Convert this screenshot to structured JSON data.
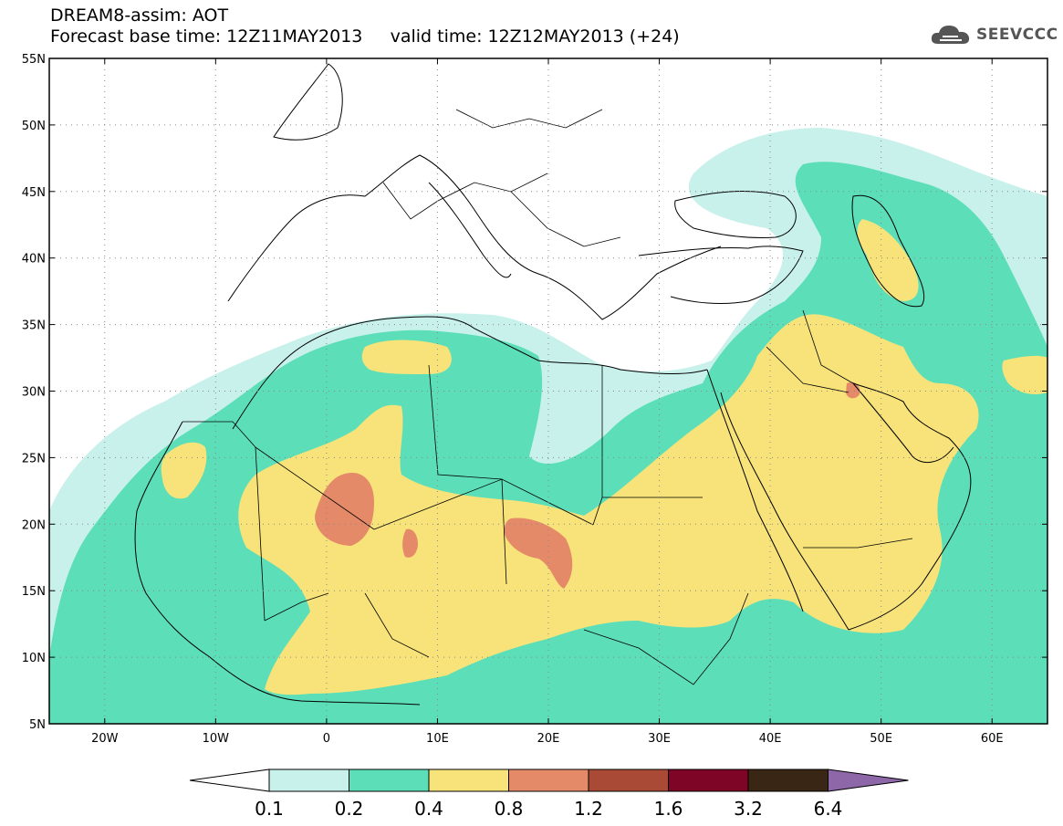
{
  "header": {
    "model_title": "DREAM8-assim: AOT",
    "base_time": "Forecast base time: 12Z11MAY2013",
    "valid_time": "valid time: 12Z12MAY2013 (+24)"
  },
  "logo": {
    "text": "SEEVCCC",
    "icon": "cloud-icon"
  },
  "map": {
    "projection": "cylindrical equidistant",
    "lon_range": [
      -25,
      65
    ],
    "lat_range": [
      5,
      55
    ],
    "lat_ticks": [
      "5N",
      "10N",
      "15N",
      "20N",
      "25N",
      "30N",
      "35N",
      "40N",
      "45N",
      "50N",
      "55N"
    ],
    "lon_ticks": [
      "20W",
      "10W",
      "0",
      "10E",
      "20E",
      "30E",
      "40E",
      "50E",
      "60E"
    ],
    "grid": "dotted",
    "field": "Aerosol optical thickness (AOT)"
  },
  "colorbar": {
    "levels": [
      "0.1",
      "0.2",
      "0.4",
      "0.8",
      "1.2",
      "1.6",
      "3.2",
      "6.4"
    ],
    "colors": [
      "#ffffff",
      "#c9f1ec",
      "#5cdfb8",
      "#f7e37a",
      "#e58a69",
      "#a94a36",
      "#7e0526",
      "#3a2614",
      "#8e67a8"
    ]
  }
}
